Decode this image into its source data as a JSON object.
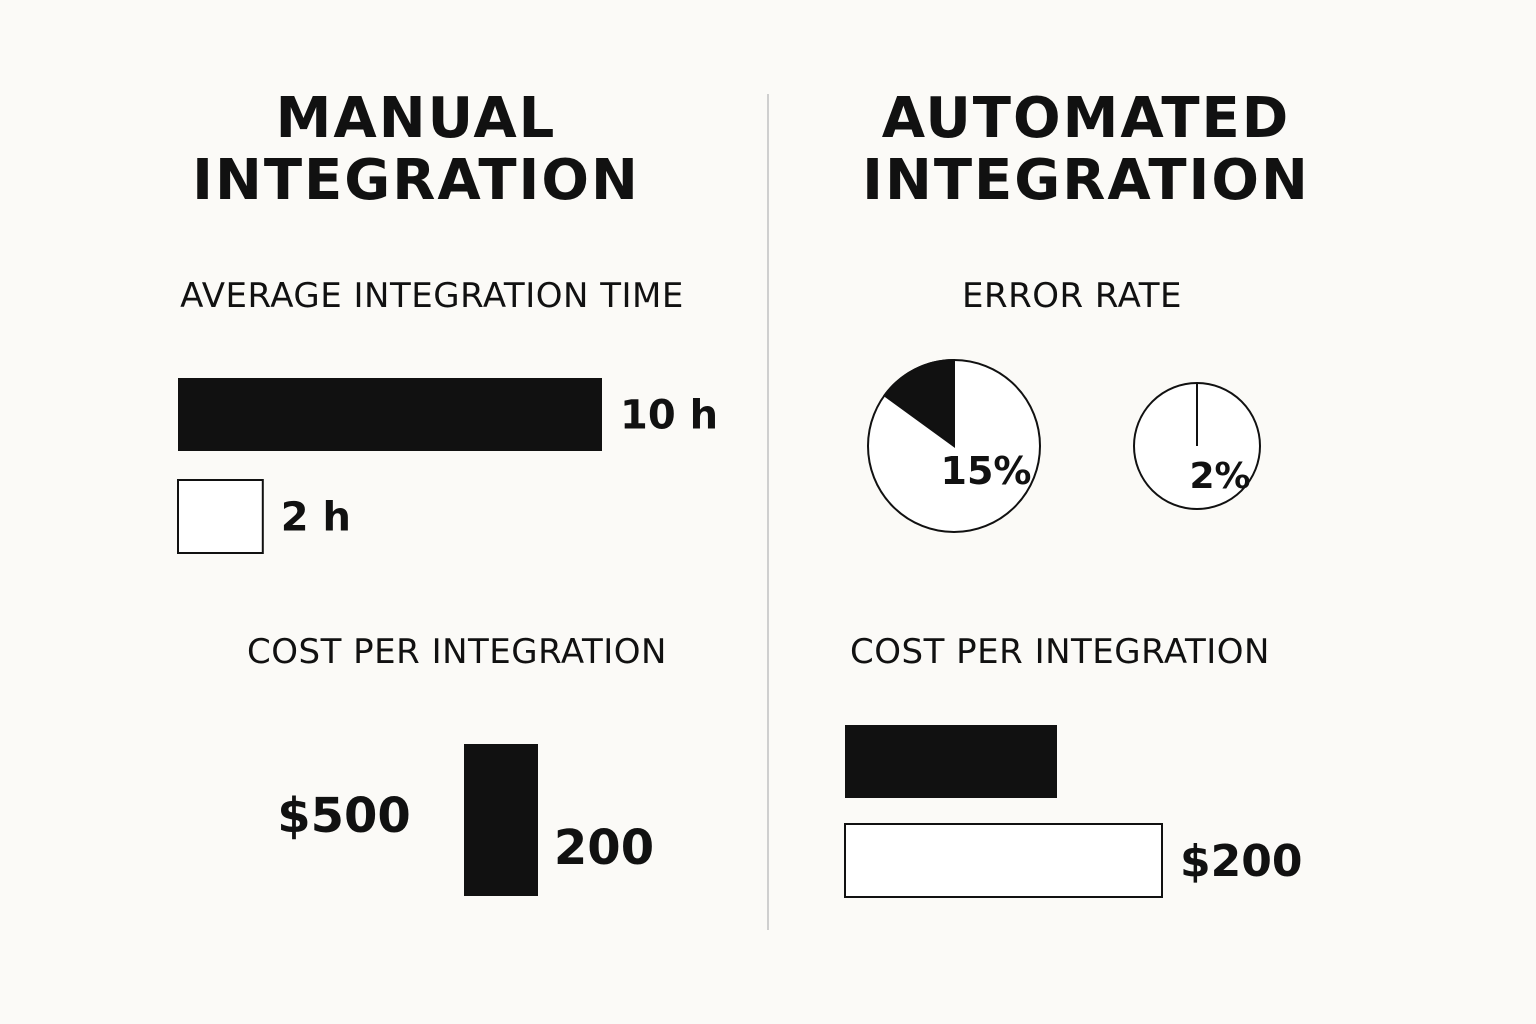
{
  "colors": {
    "background": "#fbfaf7",
    "ink": "#111111",
    "divider": "#cfcfcf",
    "empty_fill": "#ffffff"
  },
  "left_panel": {
    "heading_line1": "MANUAL",
    "heading_line2": "INTEGRATION"
  },
  "right_panel": {
    "heading_line1": "AUTOMATED",
    "heading_line2": "INTEGRATION"
  },
  "chart_data": [
    {
      "id": "integration_time",
      "type": "bar",
      "orientation": "horizontal",
      "title": "AVERAGE INTEGRATION TIME",
      "unit": "h",
      "bars": [
        {
          "value": 10,
          "label": "10 h",
          "style": "filled"
        },
        {
          "value": 2,
          "label": "2 h",
          "style": "outline"
        }
      ]
    },
    {
      "id": "error_rate",
      "type": "pie",
      "title": "ERROR RATE",
      "pies": [
        {
          "value": 15,
          "label": "15%"
        },
        {
          "value": 2,
          "label": "2%"
        }
      ]
    },
    {
      "id": "cost_manual",
      "type": "bar",
      "orientation": "vertical",
      "title": "COST PER INTEGRATION",
      "bars": [
        {
          "value": 500,
          "label": "$500",
          "style": "filled"
        },
        {
          "value": 200,
          "label": "200"
        }
      ]
    },
    {
      "id": "cost_automated",
      "type": "bar",
      "orientation": "horizontal",
      "title": "COST PER INTEGRATION",
      "bars": [
        {
          "value": null,
          "label": "",
          "style": "filled"
        },
        {
          "value": 200,
          "label": "$200",
          "style": "outline"
        }
      ]
    }
  ]
}
